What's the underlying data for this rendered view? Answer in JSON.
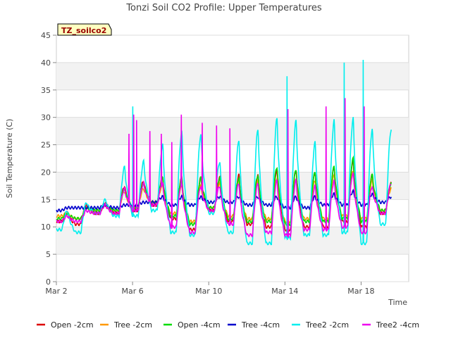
{
  "chart_data": {
    "type": "line",
    "title": "Tonzi Soil CO2 Profile: Upper Temperatures",
    "site_label": "TZ_soilco2",
    "xlabel": "Time",
    "ylabel": "Soil Temperature (C)",
    "xlim": [
      2.0,
      20.5
    ],
    "ylim": [
      0,
      45
    ],
    "x_ticks": [
      {
        "value": 2,
        "label": "Mar 2"
      },
      {
        "value": 6,
        "label": "Mar 6"
      },
      {
        "value": 10,
        "label": "Mar 10"
      },
      {
        "value": 14,
        "label": "Mar 14"
      },
      {
        "value": 18,
        "label": "Mar 18"
      }
    ],
    "y_ticks": [
      0,
      5,
      10,
      15,
      20,
      25,
      30,
      35,
      40,
      45
    ],
    "grid": true,
    "legend_position": "bottom",
    "days": [
      2,
      3,
      4,
      5,
      6,
      7,
      8,
      9,
      10,
      11,
      12,
      13,
      14,
      15,
      16,
      17,
      18,
      19
    ],
    "series": [
      {
        "name": "Open -2cm",
        "color": "#dd0000",
        "min": [
          11.0,
          10.5,
          12.5,
          12.5,
          13.0,
          14.0,
          11.5,
          9.5,
          13.0,
          11.0,
          10.5,
          10.0,
          9.5,
          10.0,
          10.0,
          11.0,
          10.0,
          12.5
        ],
        "max": [
          12.5,
          14.0,
          14.5,
          17.5,
          18.5,
          19.0,
          19.0,
          19.0,
          19.0,
          19.5,
          19.5,
          20.5,
          20.5,
          20.0,
          21.0,
          22.0,
          19.5,
          18.0
        ]
      },
      {
        "name": "Tree -2cm",
        "color": "#ff9900",
        "min": [
          12.0,
          11.5,
          13.0,
          13.0,
          13.5,
          14.5,
          12.5,
          11.0,
          13.5,
          12.0,
          11.5,
          11.5,
          11.0,
          11.5,
          11.5,
          12.0,
          11.5,
          13.0
        ],
        "max": [
          12.5,
          13.5,
          14.0,
          16.5,
          17.0,
          17.5,
          17.5,
          17.5,
          18.0,
          18.5,
          18.5,
          19.0,
          19.0,
          18.5,
          19.5,
          20.0,
          18.5,
          17.0
        ]
      },
      {
        "name": "Open -4cm",
        "color": "#00dd00",
        "min": [
          11.5,
          11.5,
          13.0,
          13.0,
          13.5,
          14.5,
          12.0,
          10.5,
          13.5,
          11.5,
          11.0,
          11.0,
          10.5,
          11.0,
          11.0,
          11.5,
          11.0,
          13.0
        ],
        "max": [
          12.5,
          13.5,
          14.0,
          17.0,
          18.0,
          19.0,
          19.0,
          19.0,
          19.0,
          19.0,
          19.5,
          21.0,
          20.5,
          20.0,
          21.0,
          22.5,
          19.5,
          18.0
        ]
      },
      {
        "name": "Tree -4cm",
        "color": "#0000cc",
        "min": [
          13.0,
          13.5,
          13.5,
          13.5,
          14.0,
          14.5,
          14.0,
          14.0,
          14.5,
          14.5,
          14.0,
          14.0,
          13.5,
          13.5,
          14.0,
          14.0,
          14.0,
          14.5
        ],
        "max": [
          13.5,
          13.5,
          14.0,
          14.0,
          14.5,
          15.5,
          15.5,
          15.5,
          15.5,
          15.5,
          15.5,
          15.5,
          15.5,
          15.5,
          16.0,
          16.5,
          16.0,
          15.5
        ]
      },
      {
        "name": "Tree2 -2cm",
        "color": "#00eeee",
        "min": [
          9.5,
          9.0,
          12.5,
          12.0,
          12.0,
          13.0,
          9.0,
          8.5,
          12.5,
          9.0,
          7.0,
          7.0,
          8.0,
          8.5,
          8.5,
          9.0,
          7.0,
          10.5
        ],
        "max": [
          13.0,
          14.5,
          15.0,
          21.0,
          22.0,
          25.0,
          27.5,
          27.0,
          22.0,
          26.0,
          28.0,
          30.0,
          29.5,
          25.5,
          29.5,
          30.0,
          28.0,
          28.0
        ]
      },
      {
        "name": "Tree2 -4cm",
        "color": "#ee00ee",
        "min": [
          11.0,
          11.0,
          12.5,
          12.5,
          13.0,
          14.0,
          10.0,
          9.0,
          13.0,
          10.5,
          8.5,
          9.0,
          8.5,
          9.5,
          9.5,
          10.0,
          9.0,
          12.5
        ],
        "max": [
          12.0,
          13.0,
          14.0,
          17.0,
          18.0,
          18.0,
          18.0,
          17.5,
          17.5,
          18.0,
          18.0,
          18.5,
          18.5,
          17.5,
          18.5,
          20.0,
          17.5,
          18.0
        ]
      }
    ],
    "spikes": [
      {
        "series": "Tree2 -4cm",
        "x": 6.05,
        "y": 30.5
      },
      {
        "series": "Tree2 -4cm",
        "x": 6.2,
        "y": 29.5
      },
      {
        "series": "Tree2 -4cm",
        "x": 5.8,
        "y": 27.0
      },
      {
        "series": "Tree2 -4cm",
        "x": 6.9,
        "y": 27.5
      },
      {
        "series": "Tree2 -4cm",
        "x": 7.5,
        "y": 27.0
      },
      {
        "series": "Tree2 -4cm",
        "x": 8.05,
        "y": 25.5
      },
      {
        "series": "Tree2 -4cm",
        "x": 8.55,
        "y": 30.5
      },
      {
        "series": "Tree2 -4cm",
        "x": 9.65,
        "y": 29.0
      },
      {
        "series": "Tree2 -4cm",
        "x": 10.4,
        "y": 28.5
      },
      {
        "series": "Tree2 -4cm",
        "x": 11.1,
        "y": 28.0
      },
      {
        "series": "Tree2 -4cm",
        "x": 14.15,
        "y": 31.5
      },
      {
        "series": "Tree2 -4cm",
        "x": 16.15,
        "y": 32.0
      },
      {
        "series": "Tree2 -4cm",
        "x": 17.15,
        "y": 33.5
      },
      {
        "series": "Tree2 -4cm",
        "x": 18.15,
        "y": 32.0
      },
      {
        "series": "Tree2 -2cm",
        "x": 6.0,
        "y": 32.0
      },
      {
        "series": "Tree2 -2cm",
        "x": 14.1,
        "y": 37.5
      },
      {
        "series": "Tree2 -2cm",
        "x": 17.1,
        "y": 40.0
      },
      {
        "series": "Tree2 -2cm",
        "x": 18.1,
        "y": 40.5
      }
    ]
  }
}
